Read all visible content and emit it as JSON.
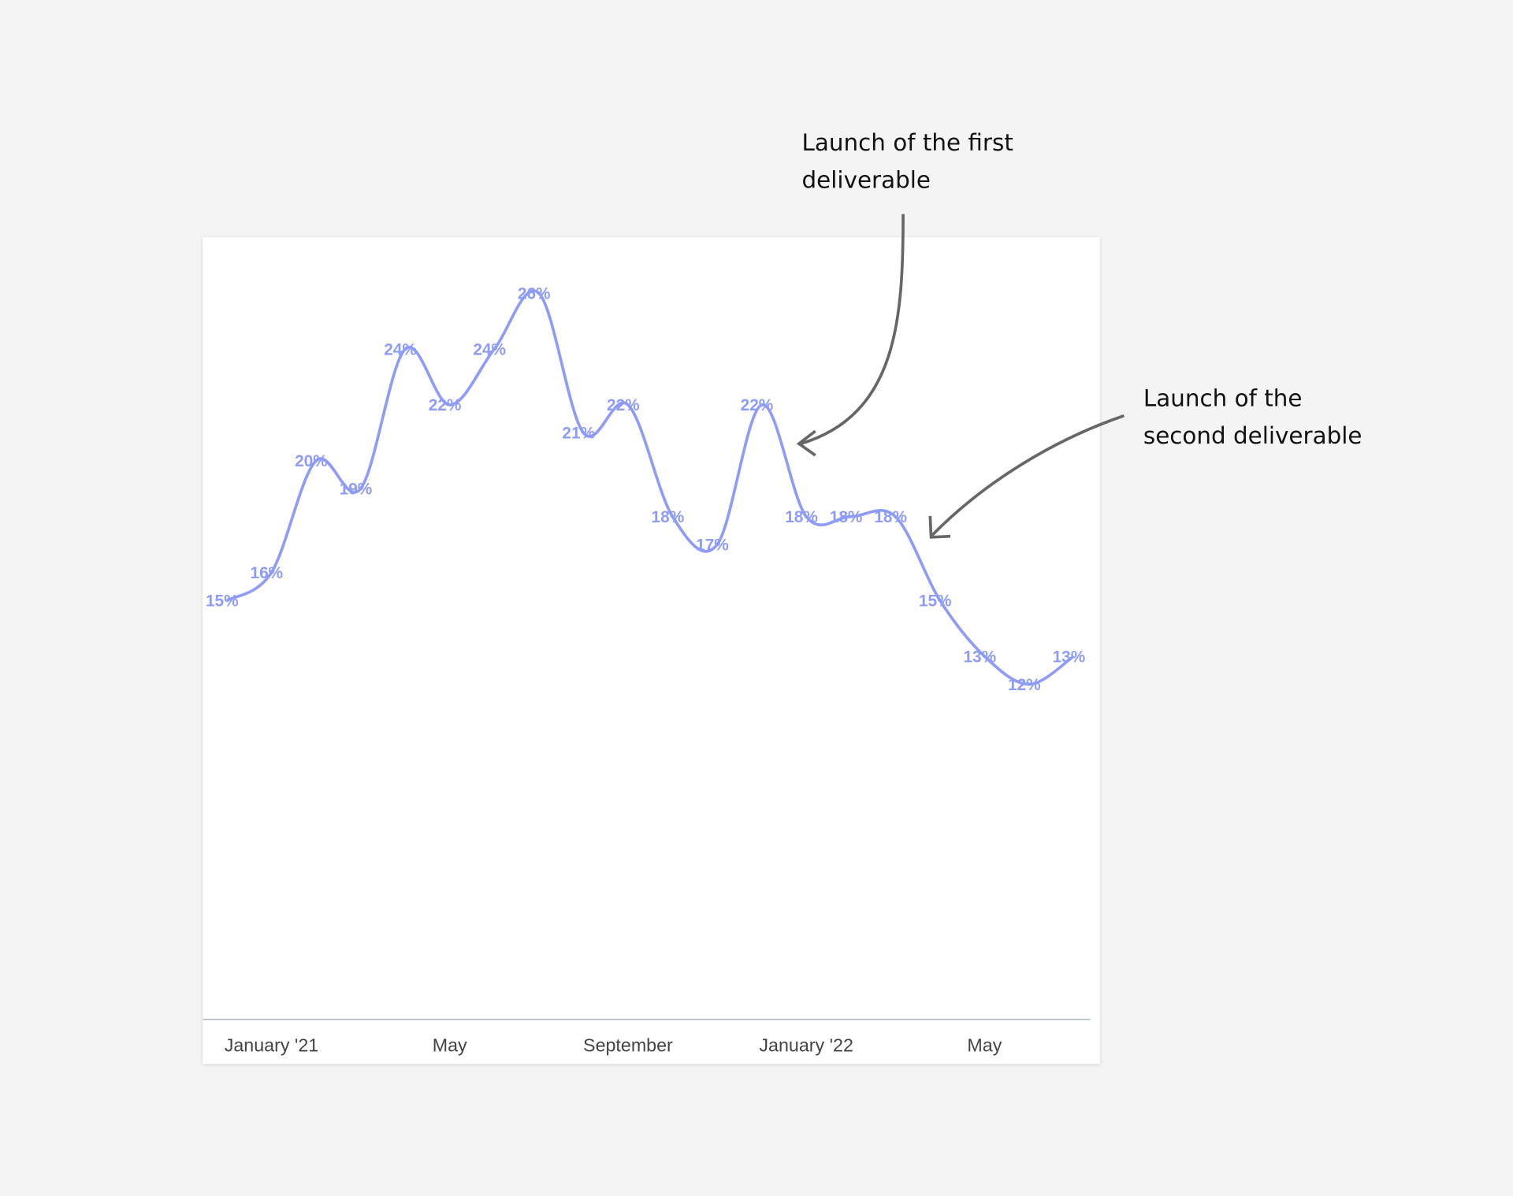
{
  "chart_data": {
    "type": "line",
    "categories": [
      null,
      "January '21",
      null,
      null,
      null,
      "May",
      null,
      null,
      null,
      "September",
      null,
      null,
      null,
      "January '22",
      null,
      null,
      null,
      "May",
      null,
      null
    ],
    "values": [
      15,
      16,
      20,
      19,
      24,
      22,
      24,
      26,
      21,
      22,
      18,
      17,
      22,
      18,
      18,
      18,
      15,
      13,
      12,
      13
    ],
    "value_labels": [
      "15%",
      "16%",
      "20%",
      "19%",
      "24%",
      "22%",
      "24%",
      "26%",
      "21%",
      "22%",
      "18%",
      "17%",
      "22%",
      "18%",
      "18%",
      "18%",
      "15%",
      "13%",
      "12%",
      "13%"
    ],
    "color": "#8f9cf7",
    "ylim": [
      0,
      28
    ],
    "annotations": [
      [
        "Launch of the first",
        "deliverable"
      ],
      [
        "Launch of the",
        "second deliverable"
      ]
    ]
  }
}
